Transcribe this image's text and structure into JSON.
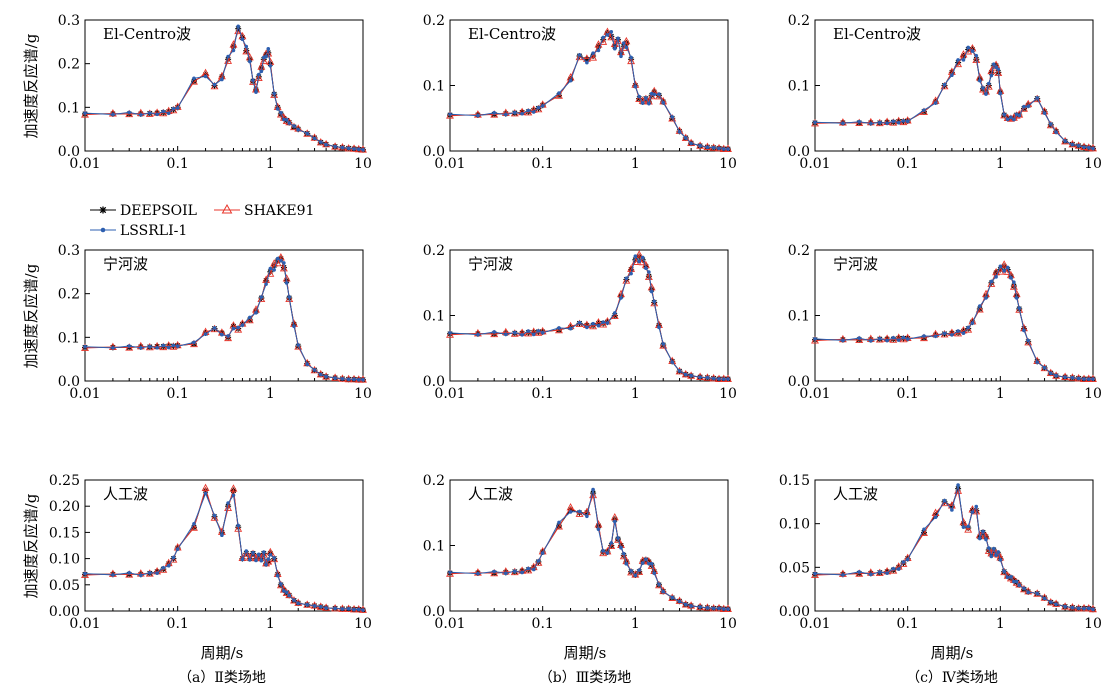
{
  "figure": {
    "ylabel": "加速度反应谱/g",
    "xlabel": "周期/s",
    "captions": [
      "（a）Ⅱ类场地",
      "（b）Ⅲ类场地",
      "（c）Ⅳ类场地"
    ],
    "legend": {
      "series": [
        {
          "name": "DEEPSOIL",
          "color": "#000000",
          "marker": "asterisk"
        },
        {
          "name": "SHAKE91",
          "color": "#e8362b",
          "marker": "triangle"
        },
        {
          "name": "LSSRLI-1",
          "color": "#2d5fb0",
          "marker": "dot"
        }
      ]
    },
    "colors": {
      "deepsoil": "#000000",
      "shake91": "#e8362b",
      "lssrli": "#2d5fb0"
    }
  },
  "chart_data": [
    {
      "id": "p11",
      "type": "line",
      "xscale": "log",
      "xlim": [
        0.01,
        10
      ],
      "ylim": [
        0,
        0.3
      ],
      "yticks": [
        "0.0",
        "0.1",
        "0.2",
        "0.3"
      ],
      "xticks": [
        "0.01",
        "0.1",
        "1",
        "10"
      ],
      "annotation": "El-Centro波",
      "x": [
        0.01,
        0.02,
        0.03,
        0.04,
        0.05,
        0.06,
        0.07,
        0.08,
        0.09,
        0.1,
        0.15,
        0.2,
        0.25,
        0.3,
        0.35,
        0.4,
        0.45,
        0.5,
        0.55,
        0.6,
        0.65,
        0.7,
        0.75,
        0.8,
        0.85,
        0.9,
        0.95,
        1.0,
        1.1,
        1.2,
        1.3,
        1.4,
        1.5,
        1.6,
        1.8,
        2.0,
        2.5,
        3,
        3.5,
        4,
        5,
        6,
        7,
        8,
        9,
        10
      ],
      "y": [
        0.085,
        0.085,
        0.085,
        0.085,
        0.086,
        0.087,
        0.088,
        0.09,
        0.095,
        0.1,
        0.16,
        0.175,
        0.15,
        0.17,
        0.21,
        0.24,
        0.28,
        0.26,
        0.23,
        0.21,
        0.16,
        0.14,
        0.17,
        0.19,
        0.21,
        0.22,
        0.225,
        0.2,
        0.13,
        0.1,
        0.085,
        0.075,
        0.07,
        0.065,
        0.055,
        0.05,
        0.04,
        0.03,
        0.02,
        0.015,
        0.01,
        0.008,
        0.006,
        0.005,
        0.004,
        0.003
      ]
    },
    {
      "id": "p12",
      "type": "line",
      "xscale": "log",
      "xlim": [
        0.01,
        10
      ],
      "ylim": [
        0,
        0.2
      ],
      "yticks": [
        "0.0",
        "0.1",
        "0.2"
      ],
      "xticks": [
        "0.01",
        "0.1",
        "1",
        "10"
      ],
      "annotation": "El-Centro波",
      "x": [
        0.01,
        0.02,
        0.03,
        0.04,
        0.05,
        0.06,
        0.07,
        0.08,
        0.09,
        0.1,
        0.15,
        0.2,
        0.25,
        0.3,
        0.35,
        0.4,
        0.45,
        0.5,
        0.55,
        0.6,
        0.65,
        0.7,
        0.75,
        0.8,
        0.9,
        1.0,
        1.1,
        1.2,
        1.3,
        1.4,
        1.5,
        1.6,
        1.8,
        2.0,
        2.5,
        3,
        3.5,
        4,
        5,
        6,
        7,
        8,
        9,
        10
      ],
      "y": [
        0.055,
        0.055,
        0.056,
        0.057,
        0.058,
        0.059,
        0.06,
        0.062,
        0.065,
        0.07,
        0.085,
        0.11,
        0.145,
        0.14,
        0.145,
        0.16,
        0.17,
        0.18,
        0.175,
        0.16,
        0.17,
        0.15,
        0.16,
        0.165,
        0.14,
        0.1,
        0.08,
        0.075,
        0.08,
        0.075,
        0.085,
        0.09,
        0.085,
        0.075,
        0.05,
        0.03,
        0.02,
        0.012,
        0.008,
        0.006,
        0.005,
        0.004,
        0.003,
        0.003
      ]
    },
    {
      "id": "p13",
      "type": "line",
      "xscale": "log",
      "xlim": [
        0.01,
        10
      ],
      "ylim": [
        0,
        0.2
      ],
      "yticks": [
        "0.0",
        "0.1",
        "0.2"
      ],
      "xticks": [
        "0.01",
        "0.1",
        "1",
        "10"
      ],
      "annotation": "El-Centro波",
      "x": [
        0.01,
        0.02,
        0.03,
        0.04,
        0.05,
        0.06,
        0.07,
        0.08,
        0.09,
        0.1,
        0.15,
        0.2,
        0.25,
        0.3,
        0.35,
        0.4,
        0.45,
        0.5,
        0.55,
        0.6,
        0.65,
        0.7,
        0.75,
        0.8,
        0.85,
        0.9,
        0.95,
        1.0,
        1.1,
        1.2,
        1.3,
        1.4,
        1.5,
        1.6,
        1.8,
        2.0,
        2.5,
        3,
        3.5,
        4,
        5,
        6,
        7,
        8,
        9,
        10
      ],
      "y": [
        0.043,
        0.043,
        0.043,
        0.043,
        0.043,
        0.044,
        0.044,
        0.045,
        0.045,
        0.046,
        0.06,
        0.075,
        0.1,
        0.12,
        0.135,
        0.145,
        0.155,
        0.155,
        0.14,
        0.11,
        0.095,
        0.09,
        0.1,
        0.12,
        0.13,
        0.13,
        0.12,
        0.09,
        0.055,
        0.05,
        0.05,
        0.05,
        0.055,
        0.055,
        0.065,
        0.07,
        0.08,
        0.06,
        0.04,
        0.03,
        0.015,
        0.01,
        0.008,
        0.006,
        0.005,
        0.004
      ]
    },
    {
      "id": "p21",
      "type": "line",
      "xscale": "log",
      "xlim": [
        0.01,
        10
      ],
      "ylim": [
        0,
        0.3
      ],
      "yticks": [
        "0.0",
        "0.1",
        "0.2",
        "0.3"
      ],
      "xticks": [
        "0.01",
        "0.1",
        "1",
        "10"
      ],
      "annotation": "宁河波",
      "x": [
        0.01,
        0.02,
        0.03,
        0.04,
        0.05,
        0.06,
        0.07,
        0.08,
        0.09,
        0.1,
        0.15,
        0.2,
        0.25,
        0.3,
        0.35,
        0.4,
        0.45,
        0.5,
        0.6,
        0.7,
        0.8,
        0.9,
        1.0,
        1.1,
        1.2,
        1.3,
        1.4,
        1.5,
        1.6,
        1.8,
        2.0,
        2.5,
        3,
        3.5,
        4,
        5,
        6,
        7,
        8,
        9,
        10
      ],
      "y": [
        0.077,
        0.077,
        0.077,
        0.078,
        0.078,
        0.079,
        0.079,
        0.08,
        0.08,
        0.081,
        0.085,
        0.11,
        0.12,
        0.11,
        0.1,
        0.125,
        0.12,
        0.13,
        0.14,
        0.16,
        0.19,
        0.23,
        0.25,
        0.265,
        0.275,
        0.28,
        0.26,
        0.23,
        0.19,
        0.13,
        0.08,
        0.04,
        0.025,
        0.015,
        0.01,
        0.007,
        0.005,
        0.004,
        0.004,
        0.003,
        0.003
      ]
    },
    {
      "id": "p22",
      "type": "line",
      "xscale": "log",
      "xlim": [
        0.01,
        10
      ],
      "ylim": [
        0,
        0.2
      ],
      "yticks": [
        "0.0",
        "0.1",
        "0.2"
      ],
      "xticks": [
        "0.01",
        "0.1",
        "1",
        "10"
      ],
      "annotation": "宁河波",
      "x": [
        0.01,
        0.02,
        0.03,
        0.04,
        0.05,
        0.06,
        0.07,
        0.08,
        0.09,
        0.1,
        0.15,
        0.2,
        0.25,
        0.3,
        0.35,
        0.4,
        0.45,
        0.5,
        0.6,
        0.7,
        0.8,
        0.9,
        1.0,
        1.1,
        1.2,
        1.3,
        1.4,
        1.5,
        1.6,
        1.8,
        2.0,
        2.5,
        3,
        3.5,
        4,
        5,
        6,
        7,
        8,
        9,
        10
      ],
      "y": [
        0.072,
        0.072,
        0.072,
        0.073,
        0.073,
        0.073,
        0.074,
        0.074,
        0.075,
        0.075,
        0.078,
        0.082,
        0.088,
        0.085,
        0.085,
        0.088,
        0.088,
        0.09,
        0.1,
        0.13,
        0.155,
        0.17,
        0.185,
        0.19,
        0.185,
        0.175,
        0.16,
        0.14,
        0.12,
        0.085,
        0.055,
        0.03,
        0.015,
        0.01,
        0.008,
        0.006,
        0.005,
        0.004,
        0.003,
        0.003,
        0.003
      ]
    },
    {
      "id": "p23",
      "type": "line",
      "xscale": "log",
      "xlim": [
        0.01,
        10
      ],
      "ylim": [
        0,
        0.2
      ],
      "yticks": [
        "0.0",
        "0.1",
        "0.2"
      ],
      "xticks": [
        "0.01",
        "0.1",
        "1",
        "10"
      ],
      "annotation": "宁河波",
      "x": [
        0.01,
        0.02,
        0.03,
        0.04,
        0.05,
        0.06,
        0.07,
        0.08,
        0.09,
        0.1,
        0.15,
        0.2,
        0.25,
        0.3,
        0.35,
        0.4,
        0.45,
        0.5,
        0.6,
        0.7,
        0.8,
        0.9,
        1.0,
        1.1,
        1.2,
        1.3,
        1.4,
        1.5,
        1.6,
        1.8,
        2.0,
        2.5,
        3,
        3.5,
        4,
        5,
        6,
        7,
        8,
        9,
        10
      ],
      "y": [
        0.063,
        0.063,
        0.063,
        0.063,
        0.064,
        0.064,
        0.064,
        0.065,
        0.065,
        0.065,
        0.066,
        0.07,
        0.072,
        0.073,
        0.074,
        0.076,
        0.08,
        0.09,
        0.11,
        0.13,
        0.15,
        0.165,
        0.17,
        0.175,
        0.17,
        0.16,
        0.145,
        0.13,
        0.11,
        0.08,
        0.06,
        0.03,
        0.02,
        0.012,
        0.008,
        0.006,
        0.005,
        0.004,
        0.003,
        0.003,
        0.003
      ]
    },
    {
      "id": "p31",
      "type": "line",
      "xscale": "log",
      "xlim": [
        0.01,
        10
      ],
      "ylim": [
        0,
        0.25
      ],
      "yticks": [
        "0.00",
        "0.05",
        "0.10",
        "0.15",
        "0.20",
        "0.25"
      ],
      "xticks": [
        "0.01",
        "0.1",
        "1",
        "10"
      ],
      "annotation": "人工波",
      "x": [
        0.01,
        0.02,
        0.03,
        0.04,
        0.05,
        0.06,
        0.07,
        0.08,
        0.09,
        0.1,
        0.15,
        0.2,
        0.25,
        0.3,
        0.35,
        0.4,
        0.45,
        0.5,
        0.55,
        0.6,
        0.65,
        0.7,
        0.75,
        0.8,
        0.85,
        0.9,
        0.95,
        1.0,
        1.1,
        1.2,
        1.3,
        1.4,
        1.5,
        1.6,
        1.8,
        2.0,
        2.5,
        3,
        3.5,
        4,
        5,
        6,
        7,
        8,
        9,
        10
      ],
      "y": [
        0.07,
        0.07,
        0.07,
        0.07,
        0.072,
        0.075,
        0.08,
        0.09,
        0.1,
        0.12,
        0.16,
        0.23,
        0.18,
        0.15,
        0.2,
        0.23,
        0.16,
        0.1,
        0.11,
        0.1,
        0.11,
        0.1,
        0.105,
        0.1,
        0.11,
        0.09,
        0.095,
        0.11,
        0.1,
        0.07,
        0.05,
        0.04,
        0.035,
        0.03,
        0.02,
        0.015,
        0.012,
        0.01,
        0.008,
        0.006,
        0.005,
        0.004,
        0.004,
        0.003,
        0.003,
        0.002
      ]
    },
    {
      "id": "p32",
      "type": "line",
      "xscale": "log",
      "xlim": [
        0.01,
        10
      ],
      "ylim": [
        0,
        0.2
      ],
      "yticks": [
        "0.0",
        "0.1",
        "0.2"
      ],
      "xticks": [
        "0.01",
        "0.1",
        "1",
        "10"
      ],
      "annotation": "人工波",
      "x": [
        0.01,
        0.02,
        0.03,
        0.04,
        0.05,
        0.06,
        0.07,
        0.08,
        0.09,
        0.1,
        0.15,
        0.2,
        0.25,
        0.3,
        0.35,
        0.4,
        0.45,
        0.5,
        0.55,
        0.6,
        0.65,
        0.7,
        0.75,
        0.8,
        0.9,
        1.0,
        1.1,
        1.2,
        1.3,
        1.4,
        1.5,
        1.6,
        1.8,
        2.0,
        2.5,
        3,
        3.5,
        4,
        5,
        6,
        7,
        8,
        9,
        10
      ],
      "y": [
        0.058,
        0.058,
        0.058,
        0.059,
        0.06,
        0.061,
        0.063,
        0.066,
        0.075,
        0.09,
        0.13,
        0.155,
        0.15,
        0.15,
        0.18,
        0.13,
        0.09,
        0.09,
        0.1,
        0.14,
        0.11,
        0.1,
        0.085,
        0.075,
        0.06,
        0.055,
        0.06,
        0.075,
        0.078,
        0.075,
        0.07,
        0.06,
        0.04,
        0.03,
        0.02,
        0.015,
        0.01,
        0.008,
        0.006,
        0.005,
        0.004,
        0.004,
        0.003,
        0.003
      ]
    },
    {
      "id": "p33",
      "type": "line",
      "xscale": "log",
      "xlim": [
        0.01,
        10
      ],
      "ylim": [
        0,
        0.15
      ],
      "yticks": [
        "0.00",
        "0.05",
        "0.10",
        "0.15"
      ],
      "xticks": [
        "0.01",
        "0.1",
        "1",
        "10"
      ],
      "annotation": "人工波",
      "x": [
        0.01,
        0.02,
        0.03,
        0.04,
        0.05,
        0.06,
        0.07,
        0.08,
        0.09,
        0.1,
        0.15,
        0.2,
        0.25,
        0.3,
        0.35,
        0.4,
        0.45,
        0.5,
        0.55,
        0.6,
        0.65,
        0.7,
        0.75,
        0.8,
        0.85,
        0.9,
        0.95,
        1.0,
        1.1,
        1.2,
        1.3,
        1.4,
        1.5,
        1.6,
        1.8,
        2.0,
        2.5,
        3,
        3.5,
        4,
        5,
        6,
        7,
        8,
        9,
        10
      ],
      "y": [
        0.042,
        0.042,
        0.043,
        0.043,
        0.044,
        0.045,
        0.047,
        0.05,
        0.055,
        0.06,
        0.09,
        0.11,
        0.125,
        0.12,
        0.14,
        0.1,
        0.095,
        0.115,
        0.115,
        0.085,
        0.09,
        0.085,
        0.07,
        0.065,
        0.07,
        0.065,
        0.065,
        0.06,
        0.045,
        0.04,
        0.038,
        0.035,
        0.033,
        0.03,
        0.025,
        0.022,
        0.02,
        0.015,
        0.01,
        0.008,
        0.005,
        0.004,
        0.003,
        0.003,
        0.003,
        0.002
      ]
    }
  ]
}
